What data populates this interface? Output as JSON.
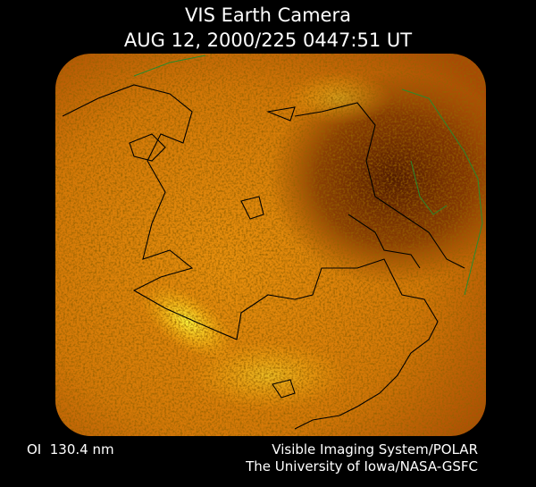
{
  "header": {
    "title": "VIS Earth Camera",
    "timestamp": "AUG 12, 2000/225 0447:51 UT"
  },
  "footer": {
    "filter": "OI  130.4 nm",
    "instrument": "Visible Imaging System/POLAR",
    "institution": "The University of Iowa/NASA-GSFC"
  }
}
